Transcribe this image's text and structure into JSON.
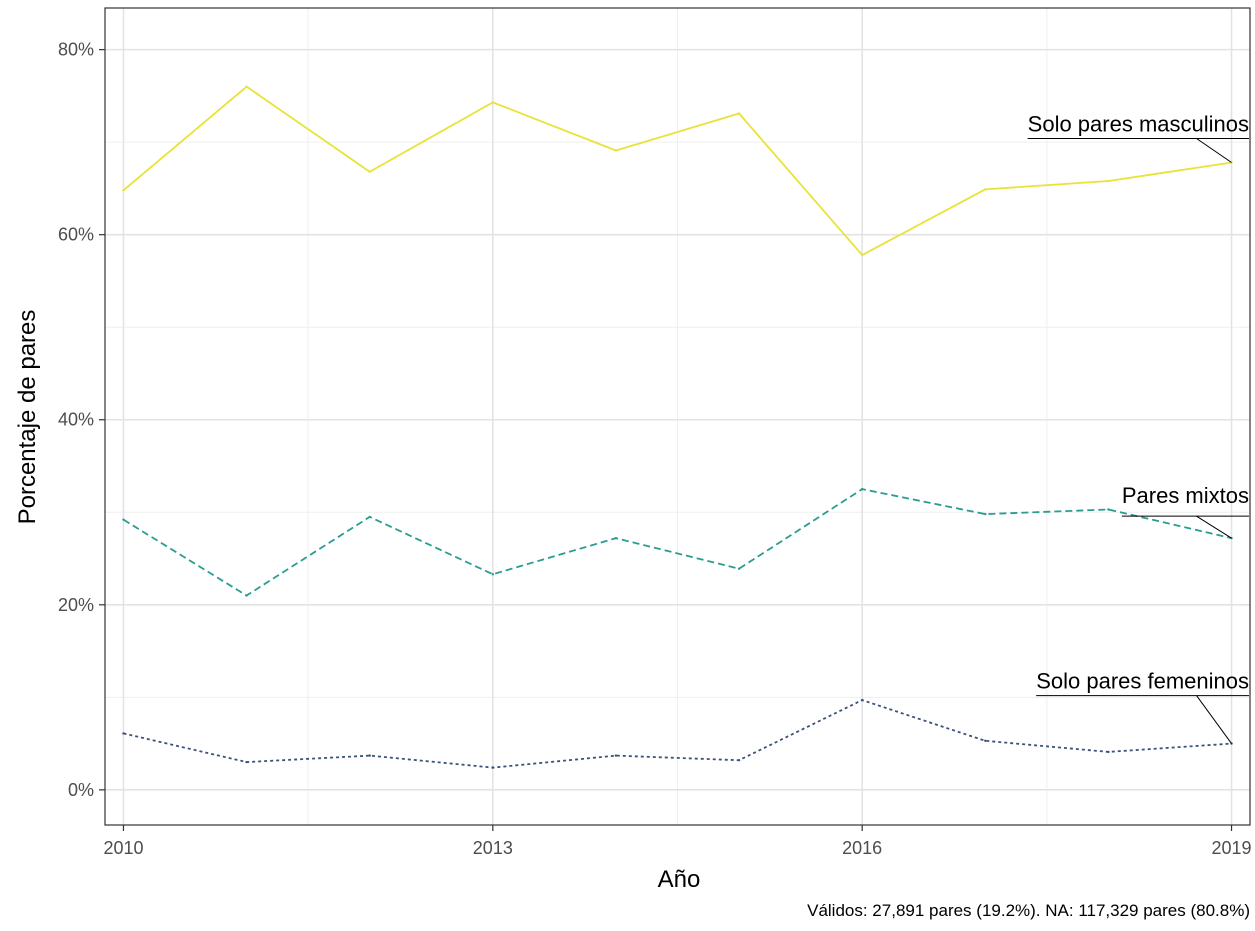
{
  "chart_data": {
    "type": "line",
    "xlabel": "Año",
    "ylabel": "Porcentaje de pares",
    "caption": "Válidos: 27,891 pares (19.2%). NA: 117,329 pares (80.8%)",
    "x": [
      2010,
      2011,
      2012,
      2013,
      2014,
      2015,
      2016,
      2017,
      2018,
      2019
    ],
    "xlim": [
      2009.85,
      2019.15
    ],
    "ylim": [
      -3.8,
      84.5
    ],
    "x_ticks": [
      2010,
      2013,
      2016,
      2019
    ],
    "x_tick_labels": [
      "2010",
      "2013",
      "2016",
      "2019"
    ],
    "y_ticks": [
      0,
      20,
      40,
      60,
      80
    ],
    "y_tick_labels": [
      "0%",
      "20%",
      "40%",
      "60%",
      "80%"
    ],
    "grid": true,
    "legend": "direct labels at right end of each line",
    "series": [
      {
        "name": "Solo pares masculinos",
        "color": "#e8e337",
        "dash": "solid",
        "values": [
          64.8,
          76.0,
          66.8,
          74.3,
          69.1,
          73.1,
          57.8,
          64.9,
          65.8,
          67.8
        ]
      },
      {
        "name": "Pares mixtos",
        "color": "#2a9d8f",
        "dash": "dashed",
        "values": [
          29.2,
          21.0,
          29.5,
          23.3,
          27.2,
          23.9,
          32.5,
          29.8,
          30.3,
          27.2
        ]
      },
      {
        "name": "Solo pares femeninos",
        "color": "#3b5279",
        "dash": "dotted",
        "values": [
          6.1,
          3.0,
          3.7,
          2.4,
          3.7,
          3.2,
          9.7,
          5.3,
          4.1,
          5.0
        ]
      }
    ]
  }
}
